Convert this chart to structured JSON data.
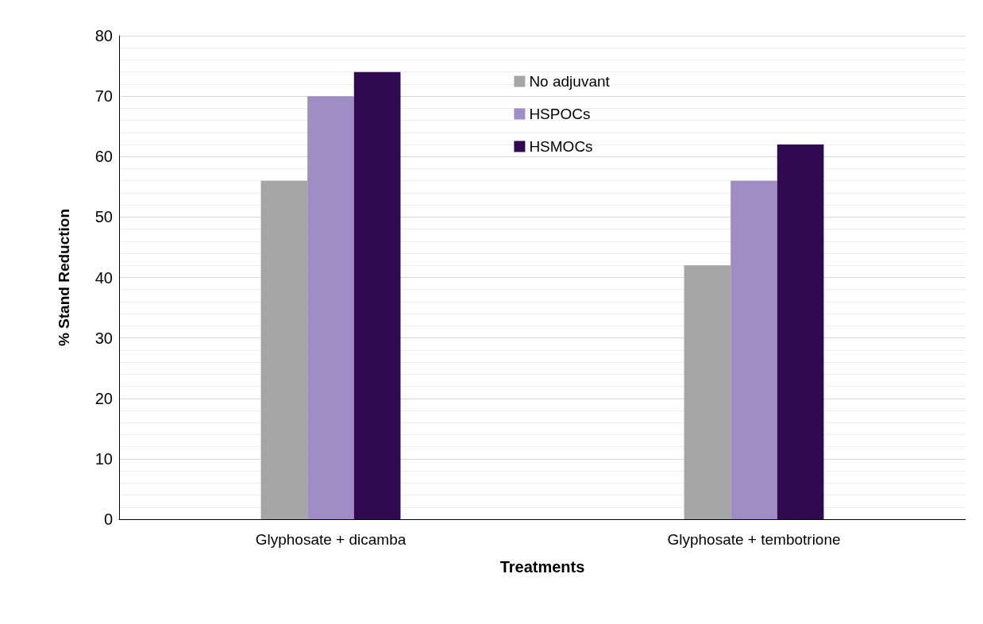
{
  "chart_data": {
    "type": "bar",
    "xlabel": "Treatments",
    "ylabel": "% Stand Reduction",
    "categories": [
      "Glyphosate + dicamba",
      "Glyphosate + tembotrione"
    ],
    "series": [
      {
        "name": "No adjuvant",
        "color": "#a6a6a6",
        "values": [
          56,
          42
        ]
      },
      {
        "name": "HSPOCs",
        "color": "#a08dc5",
        "values": [
          70,
          56
        ]
      },
      {
        "name": "HSMOCs",
        "color": "#300a50",
        "values": [
          74,
          62
        ]
      }
    ],
    "ylim": [
      0,
      80
    ],
    "yticks": [
      0,
      10,
      20,
      30,
      40,
      50,
      60,
      70,
      80
    ],
    "grid": "y",
    "legend": "top"
  }
}
